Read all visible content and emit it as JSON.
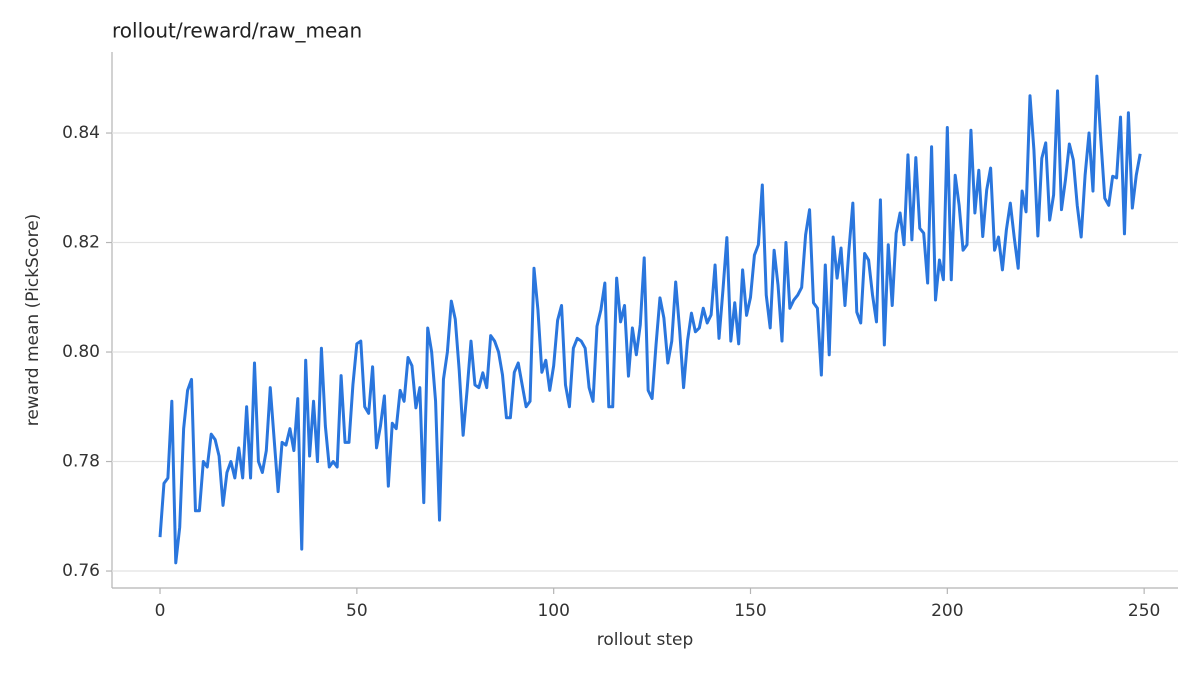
{
  "chart_data": {
    "type": "line",
    "title": "rollout/reward/raw_mean",
    "x_label": "rollout step",
    "y_label": "reward mean (PickScore)",
    "x": [
      0,
      1,
      2,
      3,
      4,
      5,
      6,
      7,
      8,
      9,
      10,
      11,
      12,
      13,
      14,
      15,
      16,
      17,
      18,
      19,
      20,
      21,
      22,
      23,
      24,
      25,
      26,
      27,
      28,
      29,
      30,
      31,
      32,
      33,
      34,
      35,
      36,
      37,
      38,
      39,
      40,
      41,
      42,
      43,
      44,
      45,
      46,
      47,
      48,
      49,
      50,
      51,
      52,
      53,
      54,
      55,
      56,
      57,
      58,
      59,
      60,
      61,
      62,
      63,
      64,
      65,
      66,
      67,
      68,
      69,
      70,
      71,
      72,
      73,
      74,
      75,
      76,
      77,
      78,
      79,
      80,
      81,
      82,
      83,
      84,
      85,
      86,
      87,
      88,
      89,
      90,
      91,
      92,
      93,
      94,
      95,
      96,
      97,
      98,
      99,
      100,
      101,
      102,
      103,
      104,
      105,
      106,
      107,
      108,
      109,
      110,
      111,
      112,
      113,
      114,
      115,
      116,
      117,
      118,
      119,
      120,
      121,
      122,
      123,
      124,
      125,
      126,
      127,
      128,
      129,
      130,
      131,
      132,
      133,
      134,
      135,
      136,
      137,
      138,
      139,
      140,
      141,
      142,
      143,
      144,
      145,
      146,
      147,
      148,
      149,
      150,
      151,
      152,
      153,
      154,
      155,
      156,
      157,
      158,
      159,
      160,
      161,
      162,
      163,
      164,
      165,
      166,
      167,
      168,
      169,
      170,
      171,
      172,
      173,
      174,
      175,
      176,
      177,
      178,
      179,
      180,
      181,
      182,
      183,
      184,
      185,
      186,
      187,
      188,
      189,
      190,
      191,
      192,
      193,
      194,
      195,
      196,
      197,
      198,
      199,
      200,
      201,
      202,
      203,
      204,
      205,
      206,
      207,
      208,
      209,
      210,
      211,
      212,
      213,
      214,
      215,
      216,
      217,
      218,
      219,
      220,
      221,
      222,
      223,
      224,
      225,
      226,
      227,
      228,
      229,
      230,
      231,
      232,
      233,
      234,
      235,
      236,
      237,
      238,
      239,
      240,
      241,
      242,
      243,
      244,
      245,
      246,
      247,
      248,
      249
    ],
    "series": [
      {
        "name": "raw_mean",
        "color": "#2a76dd",
        "values": [
          0.7662,
          0.776,
          0.777,
          0.791,
          0.7615,
          0.768,
          0.786,
          0.793,
          0.795,
          0.771,
          0.771,
          0.78,
          0.779,
          0.785,
          0.784,
          0.781,
          0.772,
          0.778,
          0.78,
          0.777,
          0.7825,
          0.777,
          0.79,
          0.777,
          0.798,
          0.78,
          0.778,
          0.782,
          0.7935,
          0.784,
          0.7745,
          0.7835,
          0.783,
          0.786,
          0.782,
          0.7915,
          0.764,
          0.7985,
          0.781,
          0.791,
          0.78,
          0.8007,
          0.7865,
          0.779,
          0.78,
          0.779,
          0.7957,
          0.7835,
          0.7835,
          0.794,
          0.8015,
          0.802,
          0.79,
          0.7888,
          0.7973,
          0.7825,
          0.7865,
          0.792,
          0.7755,
          0.787,
          0.786,
          0.793,
          0.791,
          0.799,
          0.7975,
          0.7898,
          0.7935,
          0.7725,
          0.8044,
          0.8,
          0.791,
          0.7693,
          0.795,
          0.8,
          0.8093,
          0.806,
          0.7967,
          0.7848,
          0.793,
          0.802,
          0.794,
          0.7935,
          0.7962,
          0.7935,
          0.803,
          0.802,
          0.8,
          0.7958,
          0.788,
          0.788,
          0.7963,
          0.798,
          0.794,
          0.79,
          0.791,
          0.8153,
          0.8077,
          0.7963,
          0.7985,
          0.793,
          0.7975,
          0.8058,
          0.8085,
          0.794,
          0.79,
          0.8007,
          0.8025,
          0.802,
          0.8007,
          0.7935,
          0.791,
          0.8047,
          0.8077,
          0.8126,
          0.79,
          0.79,
          0.8135,
          0.8055,
          0.8085,
          0.7956,
          0.8044,
          0.7995,
          0.805,
          0.8172,
          0.793,
          0.7915,
          0.8013,
          0.8099,
          0.8062,
          0.798,
          0.802,
          0.8128,
          0.804,
          0.7935,
          0.802,
          0.8071,
          0.8037,
          0.8044,
          0.808,
          0.8053,
          0.8068,
          0.8159,
          0.8025,
          0.8113,
          0.8209,
          0.802,
          0.809,
          0.8015,
          0.815,
          0.8067,
          0.81,
          0.8177,
          0.8196,
          0.8305,
          0.8104,
          0.8044,
          0.8186,
          0.8122,
          0.802,
          0.82,
          0.808,
          0.8095,
          0.8104,
          0.8118,
          0.8214,
          0.826,
          0.809,
          0.808,
          0.7958,
          0.8159,
          0.7995,
          0.821,
          0.8135,
          0.819,
          0.8085,
          0.8186,
          0.8272,
          0.8073,
          0.8053,
          0.818,
          0.8168,
          0.8104,
          0.8055,
          0.8278,
          0.8013,
          0.8196,
          0.8085,
          0.8217,
          0.8254,
          0.8196,
          0.836,
          0.8205,
          0.8355,
          0.8226,
          0.8217,
          0.8126,
          0.8375,
          0.8095,
          0.8168,
          0.8132,
          0.841,
          0.8132,
          0.8323,
          0.8268,
          0.8186,
          0.8196,
          0.8405,
          0.8254,
          0.8332,
          0.8211,
          0.8296,
          0.8336,
          0.8186,
          0.821,
          0.815,
          0.8223,
          0.8272,
          0.8209,
          0.8153,
          0.8294,
          0.8256,
          0.8468,
          0.8369,
          0.8212,
          0.8354,
          0.8382,
          0.8241,
          0.8287,
          0.8477,
          0.826,
          0.8314,
          0.838,
          0.8351,
          0.8268,
          0.821,
          0.8323,
          0.84,
          0.8294,
          0.8504,
          0.8387,
          0.8281,
          0.8268,
          0.8321,
          0.8318,
          0.8429,
          0.8216,
          0.8437,
          0.8263,
          0.8323,
          0.8362
        ]
      }
    ],
    "xlim": [
      -12.2,
      258.6
    ],
    "xticks": [
      0,
      50,
      100,
      150,
      200,
      250
    ],
    "ylim": [
      0.7569,
      0.8548
    ],
    "yticks": [
      0.76,
      0.78,
      {
        "value": 0.8,
        "label": "0.80"
      },
      0.82,
      0.84
    ],
    "grid": true
  }
}
